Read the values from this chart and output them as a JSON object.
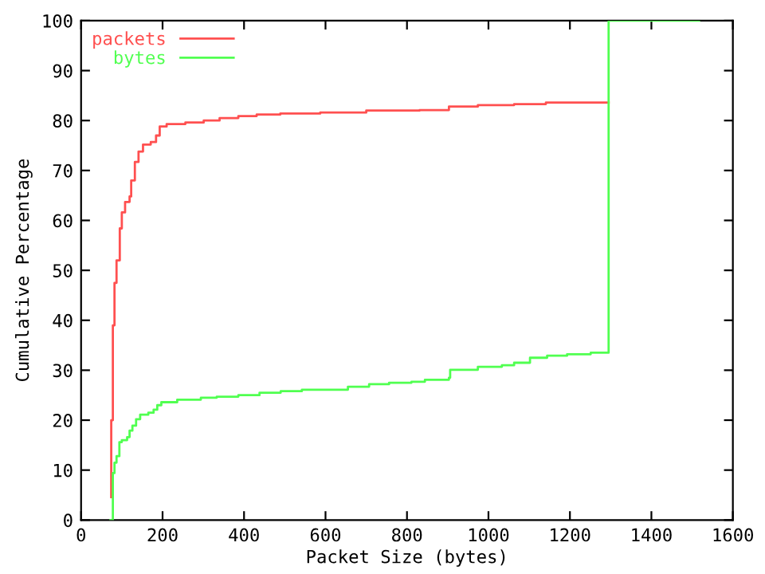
{
  "chart_data": {
    "type": "step",
    "xlabel": "Packet Size (bytes)",
    "ylabel": "Cumulative Percentage",
    "xlim": [
      0,
      1600
    ],
    "ylim": [
      0,
      100
    ],
    "xticks": [
      0,
      200,
      400,
      600,
      800,
      1000,
      1200,
      1400,
      1600
    ],
    "yticks": [
      0,
      10,
      20,
      30,
      40,
      50,
      60,
      70,
      80,
      90,
      100
    ],
    "grid": false,
    "legend": "top left",
    "line_style": "solid",
    "marker": "none",
    "series": [
      {
        "name": "packets",
        "color": "#ff5050",
        "x": [
          74,
          74,
          78,
          82,
          87,
          95,
          100,
          108,
          119,
          123,
          132,
          141,
          152,
          171,
          184,
          193,
          210,
          256,
          301,
          340,
          386,
          431,
          489,
          587,
          700,
          831,
          903,
          974,
          1063,
          1141,
          1295
        ],
        "values": [
          4.6,
          20.0,
          39.0,
          47.5,
          52.0,
          58.4,
          61.6,
          63.7,
          64.8,
          68.0,
          71.7,
          73.8,
          75.2,
          75.7,
          77.0,
          78.8,
          79.3,
          79.6,
          80.0,
          80.5,
          80.9,
          81.2,
          81.4,
          81.6,
          82.0,
          82.1,
          82.8,
          83.1,
          83.3,
          83.6,
          83.6
        ]
      },
      {
        "name": "bytes",
        "color": "#50ff50",
        "x": [
          72,
          78,
          78,
          82,
          87,
          94,
          100,
          113,
          119,
          126,
          135,
          145,
          165,
          178,
          187,
          197,
          236,
          294,
          333,
          386,
          438,
          490,
          542,
          655,
          707,
          756,
          811,
          844,
          903,
          906,
          974,
          1033,
          1063,
          1102,
          1144,
          1193,
          1251,
          1295,
          1517
        ],
        "values": [
          0,
          4.6,
          9.4,
          11.5,
          12.8,
          15.6,
          16.0,
          16.6,
          17.9,
          18.9,
          20.2,
          21.1,
          21.5,
          22.1,
          23.0,
          23.6,
          24.1,
          24.5,
          24.7,
          25.0,
          25.5,
          25.8,
          26.1,
          26.7,
          27.2,
          27.5,
          27.7,
          28.1,
          28.5,
          30.1,
          30.7,
          31.0,
          31.5,
          32.5,
          32.9,
          33.2,
          33.5,
          100,
          100
        ]
      }
    ]
  }
}
